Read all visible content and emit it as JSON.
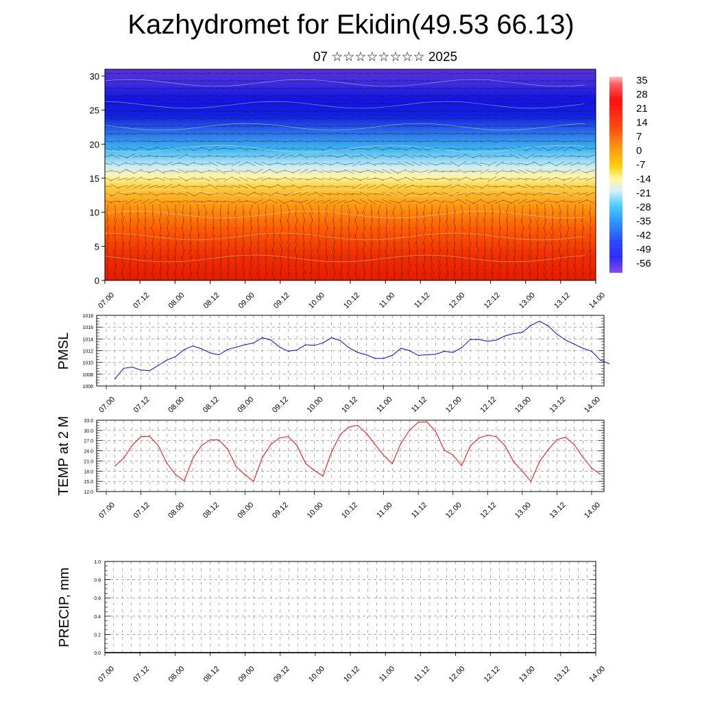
{
  "title": "Kazhydromet for Ekidin(49.53 66.13)",
  "subtitle": "07 ☆☆☆☆☆☆☆☆ 2025",
  "chart_data": [
    {
      "type": "heatmap",
      "ylim": [
        0,
        31
      ],
      "yticks": [
        "0",
        "5",
        "10",
        "15",
        "20",
        "25",
        "30"
      ],
      "xticks": [
        "07.00",
        "07.12",
        "08.00",
        "08.12",
        "09.00",
        "09.12",
        "10.00",
        "10.12",
        "11.00",
        "11.12",
        "12.00",
        "12.12",
        "13.00",
        "13.12",
        "14.00"
      ],
      "colorbar": {
        "labels": [
          "35",
          "28",
          "21",
          "14",
          "7",
          "0",
          "-7",
          "-14",
          "-21",
          "-28",
          "-35",
          "-42",
          "-49",
          "-56"
        ],
        "min": -63,
        "max": 39
      }
    },
    {
      "type": "line",
      "ylabel": "PMSL",
      "ylim": [
        1006,
        1018
      ],
      "yticks": [
        "1006",
        "1008",
        "1010",
        "1012",
        "1014",
        "1016",
        "1018"
      ],
      "xticks": [
        "07.00",
        "07.12",
        "08.00",
        "08.12",
        "09.00",
        "09.12",
        "10.00",
        "10.12",
        "11.00",
        "11.12",
        "12.00",
        "12.12",
        "13.00",
        "13.12",
        "14.00"
      ],
      "grid": true,
      "color": "#0000ff",
      "values": [
        1007.2,
        1009.0,
        1009.2,
        1008.7,
        1008.6,
        1009.5,
        1010.4,
        1011.0,
        1012.2,
        1012.8,
        1012.3,
        1011.6,
        1011.3,
        1012.2,
        1012.6,
        1013.0,
        1013.3,
        1014.2,
        1013.8,
        1012.6,
        1011.9,
        1012.1,
        1013.0,
        1012.9,
        1013.3,
        1014.2,
        1013.7,
        1012.5,
        1011.7,
        1011.3,
        1010.7,
        1010.7,
        1011.2,
        1012.4,
        1012.0,
        1011.2,
        1011.3,
        1011.4,
        1011.9,
        1011.7,
        1012.5,
        1013.9,
        1013.9,
        1013.6,
        1013.8,
        1014.5,
        1014.9,
        1015.1,
        1016.3,
        1017.0,
        1016.2,
        1014.8,
        1013.8,
        1013.1,
        1012.4,
        1011.9,
        1010.4,
        1009.8
      ],
      "start_index": 1
    },
    {
      "type": "line",
      "ylabel": "TEMP at 2 M",
      "ylim": [
        12,
        33
      ],
      "yticks": [
        "12.0",
        "15.0",
        "18.0",
        "21.0",
        "24.0",
        "27.0",
        "30.0",
        "33.0"
      ],
      "xticks": [
        "07.00",
        "07.12",
        "08.00",
        "08.12",
        "09.00",
        "09.12",
        "10.00",
        "10.12",
        "11.00",
        "11.12",
        "12.00",
        "12.12",
        "13.00",
        "13.12",
        "14.00"
      ],
      "grid": true,
      "color": "#ff0000",
      "values": [
        19.5,
        21.8,
        25.6,
        28.2,
        28.3,
        25.5,
        20.3,
        17.0,
        15.1,
        21.8,
        25.6,
        27.2,
        27.2,
        24.5,
        19.3,
        17.0,
        15.0,
        22.0,
        25.9,
        27.8,
        28.2,
        25.6,
        20.3,
        18.2,
        16.6,
        23.7,
        28.8,
        31.0,
        31.5,
        29.2,
        25.9,
        22.7,
        20.2,
        26.2,
        30.1,
        32.4,
        32.5,
        29.7,
        24.2,
        22.8,
        19.6,
        25.4,
        27.8,
        28.6,
        28.2,
        25.5,
        20.8,
        18.0,
        15.0,
        20.9,
        24.3,
        27.3,
        28.0,
        25.8,
        22.1,
        18.9,
        17.1
      ],
      "start_index": 1
    },
    {
      "type": "bar",
      "ylabel": "PRECIP, mm",
      "ylim": [
        0,
        1
      ],
      "yticks": [
        "0.0",
        "0.2",
        "0.4",
        "0.6",
        "0.8",
        "1.0"
      ],
      "xticks": [
        "07.00",
        "07.12",
        "08.00",
        "08.12",
        "09.00",
        "09.12",
        "10.00",
        "10.12",
        "11.00",
        "11.12",
        "12.00",
        "12.12",
        "13.00",
        "13.12",
        "14.00"
      ],
      "grid": true,
      "values": [
        0,
        0,
        0,
        0,
        0,
        0,
        0,
        0,
        0,
        0,
        0,
        0,
        0,
        0,
        0,
        0,
        0,
        0,
        0,
        0,
        0,
        0,
        0,
        0,
        0,
        0,
        0,
        0,
        0,
        0,
        0,
        0,
        0,
        0,
        0,
        0,
        0,
        0,
        0,
        0,
        0,
        0,
        0,
        0,
        0,
        0,
        0,
        0,
        0,
        0,
        0,
        0,
        0,
        0,
        0,
        0,
        0
      ]
    }
  ]
}
